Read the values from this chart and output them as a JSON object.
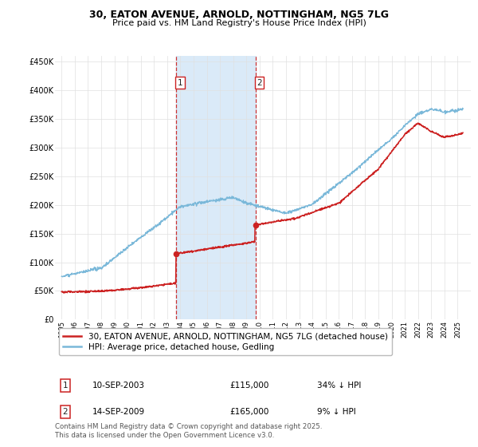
{
  "title_line1": "30, EATON AVENUE, ARNOLD, NOTTINGHAM, NG5 7LG",
  "title_line2": "Price paid vs. HM Land Registry's House Price Index (HPI)",
  "ylim": [
    0,
    460000
  ],
  "yticks": [
    0,
    50000,
    100000,
    150000,
    200000,
    250000,
    300000,
    350000,
    400000,
    450000
  ],
  "ytick_labels": [
    "£0",
    "£50K",
    "£100K",
    "£150K",
    "£200K",
    "£250K",
    "£300K",
    "£350K",
    "£400K",
    "£450K"
  ],
  "transaction1_year": 2003.7,
  "transaction1_price": 115000,
  "transaction2_year": 2009.7,
  "transaction2_price": 165000,
  "vline_color": "#cc3333",
  "vshade_color": "#daeaf8",
  "hpi_color": "#7ab8d9",
  "price_color": "#cc2222",
  "label_box_color": "#cc2222",
  "legend_label1": "30, EATON AVENUE, ARNOLD, NOTTINGHAM, NG5 7LG (detached house)",
  "legend_label2": "HPI: Average price, detached house, Gedling",
  "table_entries": [
    {
      "label": "1",
      "date": "10-SEP-2003",
      "price": "£115,000",
      "note": "34% ↓ HPI"
    },
    {
      "label": "2",
      "date": "14-SEP-2009",
      "price": "£165,000",
      "note": "9% ↓ HPI"
    }
  ],
  "footnote": "Contains HM Land Registry data © Crown copyright and database right 2025.\nThis data is licensed under the Open Government Licence v3.0.",
  "grid_color": "#e0e0e0",
  "plot_bg": "#ffffff"
}
